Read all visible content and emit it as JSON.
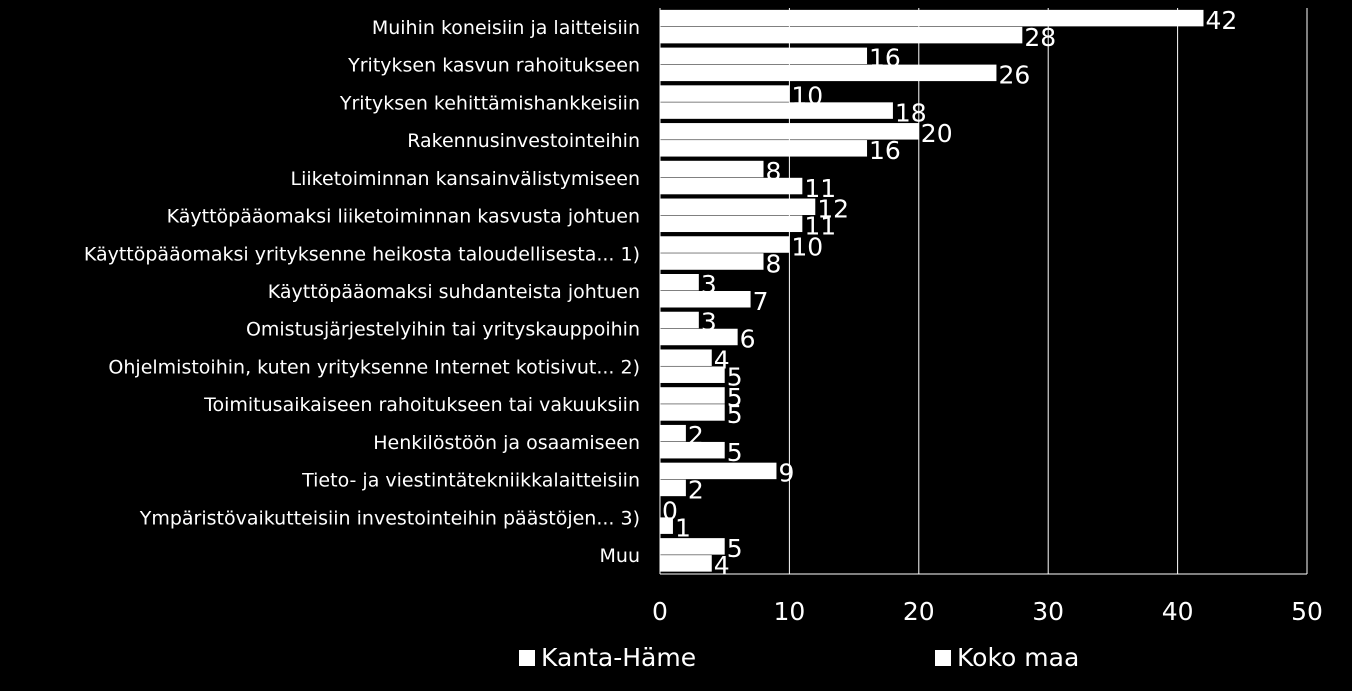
{
  "chart_data": {
    "type": "bar",
    "orientation": "horizontal",
    "categories": [
      "Muihin koneisiin ja laitteisiin",
      "Yrityksen kasvun rahoitukseen",
      "Yrityksen kehittämishankkeisiin",
      "Rakennusinvestointeihin",
      "Liiketoiminnan kansainvälistymiseen",
      "Käyttöpääomaksi liiketoiminnan kasvusta johtuen",
      "Käyttöpääomaksi yrityksenne heikosta taloudellisesta... 1)",
      "Käyttöpääomaksi suhdanteista johtuen",
      "Omistusjärjestelyihin tai yrityskauppoihin",
      "Ohjelmistoihin, kuten yrityksenne Internet kotisivut... 2)",
      "Toimitusaikaiseen rahoitukseen tai vakuuksiin",
      "Henkilöstöön ja osaamiseen",
      "Tieto- ja viestintätekniikkalaitteisiin",
      "Ympäristövaikutteisiin investointeihin päästöjen... 3)",
      "Muu"
    ],
    "series": [
      {
        "name": "Kanta-Häme",
        "values": [
          42,
          16,
          10,
          20,
          8,
          12,
          10,
          3,
          3,
          4,
          5,
          2,
          9,
          0,
          5
        ]
      },
      {
        "name": "Koko maa",
        "values": [
          28,
          26,
          18,
          16,
          11,
          11,
          8,
          7,
          6,
          5,
          5,
          5,
          2,
          1,
          4
        ]
      }
    ],
    "xlim": [
      0,
      50
    ],
    "xticks": [
      "0",
      "10",
      "20",
      "30",
      "40",
      "50"
    ],
    "grid": true,
    "legend_position": "bottom",
    "colors": {
      "background": "#000000",
      "bars": "#ffffff",
      "text": "#ffffff",
      "grid": "#ffffff"
    }
  }
}
